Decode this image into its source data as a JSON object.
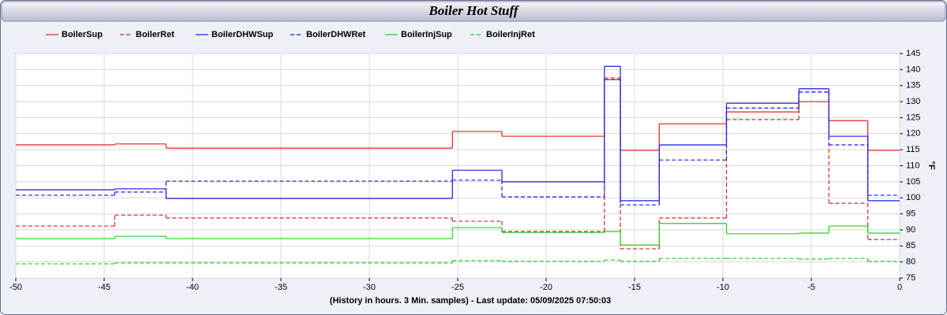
{
  "chart_data": {
    "type": "line",
    "title": "Boiler Hot Stuff",
    "x_label": "(History in hours. 3 Min. samples) - Last update: 05/09/2025 07:50:03",
    "y_label": "°F",
    "step": true,
    "grid": true,
    "legend": "top",
    "x": [
      -50,
      -44.4,
      -41.5,
      -25.3,
      -22.5,
      -16.7,
      -15.8,
      -13.6,
      -9.8,
      -5.7,
      -4.0,
      -1.8
    ],
    "series": [
      {
        "name": "BoilerSup",
        "color": "#e02020",
        "dashed": false,
        "values": [
          116.5,
          116.8,
          115.5,
          120.7,
          119.2,
          136.9,
          114.8,
          123.1,
          126.8,
          130,
          124.1,
          114.8
        ]
      },
      {
        "name": "BoilerRet",
        "color": "#e02020",
        "dashed": true,
        "values": [
          91.2,
          94.6,
          93.7,
          92.7,
          89.5,
          137.4,
          84.1,
          93.7,
          124.4,
          133,
          98.3,
          87
        ]
      },
      {
        "name": "BoilerDHWSup",
        "color": "#1a1adf",
        "dashed": false,
        "values": [
          102.5,
          102.8,
          99.8,
          108.6,
          105,
          141,
          99.1,
          116.5,
          129.5,
          134,
          119.2,
          99.1
        ]
      },
      {
        "name": "BoilerDHWRet",
        "color": "#1a1adf",
        "dashed": true,
        "values": [
          100.8,
          101.8,
          105.2,
          105.5,
          100.3,
          136.9,
          97.8,
          111.8,
          128,
          133,
          116.5,
          100.8
        ]
      },
      {
        "name": "BoilerInjSup",
        "color": "#20d020",
        "dashed": false,
        "values": [
          87.3,
          88,
          87.3,
          90.7,
          89.2,
          89.5,
          85.3,
          92,
          88.8,
          89,
          91.2,
          89
        ]
      },
      {
        "name": "BoilerInjRet",
        "color": "#20d020",
        "dashed": true,
        "values": [
          79.4,
          79.7,
          79.7,
          80.4,
          80.2,
          80.6,
          80.2,
          81.1,
          81.1,
          80.9,
          81.1,
          80.2
        ]
      }
    ],
    "xlim": [
      -50,
      0
    ],
    "xticks": [
      -50,
      -45,
      -40,
      -35,
      -30,
      -25,
      -20,
      -15,
      -10,
      -5,
      0
    ],
    "ylim": [
      75,
      145
    ],
    "yticks": [
      75,
      80,
      85,
      90,
      95,
      100,
      105,
      110,
      115,
      120,
      125,
      130,
      135,
      140,
      145
    ]
  }
}
